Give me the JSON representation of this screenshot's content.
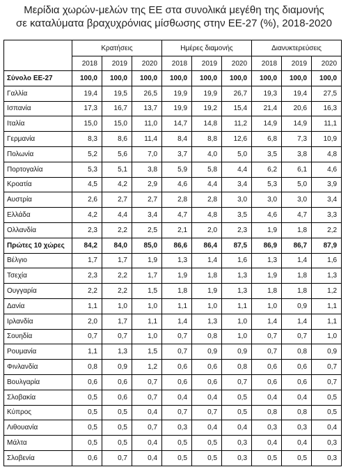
{
  "header": {
    "title_lines": [
      "Μερίδια χωρών-μελών της ΕΕ στα συνολικά μεγέθη της διαμονής",
      "σε καταλύματα βραχυχρόνιας μίσθωσης στην ΕΕ-27 (%), 2018-2020"
    ]
  },
  "table": {
    "groups": [
      {
        "label": "Κρατήσεις",
        "years": [
          "2018",
          "2019",
          "2020"
        ]
      },
      {
        "label": "Ημέρες διαμονής",
        "years": [
          "2018",
          "2019",
          "2020"
        ]
      },
      {
        "label": "Διανυκτερεύσεις",
        "years": [
          "2018",
          "2019",
          "2020"
        ]
      }
    ],
    "rows": [
      {
        "label": "Σύνολο ΕΕ-27",
        "bold": true,
        "values": [
          "100,0",
          "100,0",
          "100,0",
          "100,0",
          "100,0",
          "100,0",
          "100,0",
          "100,0",
          "100,0"
        ]
      },
      {
        "label": "Γαλλία",
        "bold": false,
        "values": [
          "19,4",
          "19,5",
          "26,5",
          "19,9",
          "19,9",
          "26,7",
          "19,3",
          "19,4",
          "27,5"
        ]
      },
      {
        "label": "Ισπανία",
        "bold": false,
        "values": [
          "17,3",
          "16,7",
          "13,7",
          "19,9",
          "19,2",
          "15,4",
          "21,4",
          "20,6",
          "16,3"
        ]
      },
      {
        "label": "Ιταλία",
        "bold": false,
        "values": [
          "15,0",
          "15,0",
          "11,0",
          "14,7",
          "14,8",
          "11,2",
          "14,9",
          "14,9",
          "11,1"
        ]
      },
      {
        "label": "Γερμανία",
        "bold": false,
        "values": [
          "8,3",
          "8,6",
          "11,4",
          "8,4",
          "8,8",
          "12,6",
          "6,8",
          "7,3",
          "10,9"
        ]
      },
      {
        "label": "Πολωνία",
        "bold": false,
        "values": [
          "5,2",
          "5,6",
          "7,0",
          "3,7",
          "4,0",
          "5,0",
          "3,5",
          "3,8",
          "4,8"
        ]
      },
      {
        "label": "Πορτογαλία",
        "bold": false,
        "values": [
          "5,3",
          "5,1",
          "3,8",
          "5,9",
          "5,8",
          "4,4",
          "6,2",
          "6,1",
          "4,6"
        ]
      },
      {
        "label": "Κροατία",
        "bold": false,
        "values": [
          "4,5",
          "4,2",
          "2,9",
          "4,6",
          "4,4",
          "3,4",
          "5,3",
          "5,0",
          "3,9"
        ]
      },
      {
        "label": "Αυστρία",
        "bold": false,
        "values": [
          "2,6",
          "2,7",
          "2,7",
          "2,8",
          "2,8",
          "3,0",
          "3,0",
          "3,0",
          "3,4"
        ]
      },
      {
        "label": "Ελλάδα",
        "bold": false,
        "values": [
          "4,2",
          "4,4",
          "3,4",
          "4,7",
          "4,8",
          "3,5",
          "4,6",
          "4,7",
          "3,3"
        ]
      },
      {
        "label": "Ολλανδία",
        "bold": false,
        "values": [
          "2,3",
          "2,2",
          "2,5",
          "2,1",
          "2,0",
          "2,3",
          "1,9",
          "1,8",
          "2,2"
        ]
      },
      {
        "label": "Πρώτες 10 χώρες",
        "bold": true,
        "values": [
          "84,2",
          "84,0",
          "85,0",
          "86,6",
          "86,4",
          "87,5",
          "86,9",
          "86,7",
          "87,9"
        ]
      },
      {
        "label": "Βέλγιο",
        "bold": false,
        "values": [
          "1,7",
          "1,7",
          "1,9",
          "1,3",
          "1,4",
          "1,6",
          "1,3",
          "1,4",
          "1,6"
        ]
      },
      {
        "label": "Τσεχία",
        "bold": false,
        "values": [
          "2,3",
          "2,2",
          "1,7",
          "1,9",
          "1,8",
          "1,3",
          "1,9",
          "1,8",
          "1,3"
        ]
      },
      {
        "label": "Ουγγαρία",
        "bold": false,
        "values": [
          "2,2",
          "2,2",
          "1,5",
          "1,8",
          "1,9",
          "1,3",
          "1,8",
          "1,8",
          "1,2"
        ]
      },
      {
        "label": "Δανία",
        "bold": false,
        "values": [
          "1,1",
          "1,0",
          "1,0",
          "1,1",
          "1,0",
          "1,1",
          "1,0",
          "0,9",
          "1,1"
        ]
      },
      {
        "label": "Ιρλανδία",
        "bold": false,
        "values": [
          "2,0",
          "1,7",
          "1,1",
          "1,4",
          "1,3",
          "1,0",
          "1,4",
          "1,4",
          "1,1"
        ]
      },
      {
        "label": "Σουηδία",
        "bold": false,
        "values": [
          "0,7",
          "0,7",
          "1,0",
          "0,7",
          "0,8",
          "1,0",
          "0,7",
          "0,7",
          "1,0"
        ]
      },
      {
        "label": "Ρουμανία",
        "bold": false,
        "values": [
          "1,1",
          "1,3",
          "1,5",
          "0,7",
          "0,9",
          "0,9",
          "0,7",
          "0,8",
          "0,9"
        ]
      },
      {
        "label": "Φινλανδία",
        "bold": false,
        "values": [
          "0,8",
          "0,9",
          "1,2",
          "0,6",
          "0,6",
          "0,8",
          "0,6",
          "0,6",
          "0,7"
        ]
      },
      {
        "label": "Βουλγαρία",
        "bold": false,
        "values": [
          "0,6",
          "0,6",
          "0,7",
          "0,6",
          "0,6",
          "0,7",
          "0,6",
          "0,6",
          "0,7"
        ]
      },
      {
        "label": "Σλοβακία",
        "bold": false,
        "values": [
          "0,5",
          "0,6",
          "0,7",
          "0,4",
          "0,4",
          "0,5",
          "0,4",
          "0,4",
          "0,5"
        ]
      },
      {
        "label": "Κύπρος",
        "bold": false,
        "values": [
          "0,5",
          "0,5",
          "0,4",
          "0,7",
          "0,7",
          "0,5",
          "0,8",
          "0,8",
          "0,5"
        ]
      },
      {
        "label": "Λιθουανία",
        "bold": false,
        "values": [
          "0,5",
          "0,5",
          "0,7",
          "0,3",
          "0,4",
          "0,4",
          "0,3",
          "0,3",
          "0,4"
        ]
      },
      {
        "label": "Μάλτα",
        "bold": false,
        "values": [
          "0,5",
          "0,5",
          "0,4",
          "0,5",
          "0,5",
          "0,3",
          "0,4",
          "0,4",
          "0,3"
        ]
      },
      {
        "label": "Σλοβενία",
        "bold": false,
        "values": [
          "0,6",
          "0,7",
          "0,4",
          "0,5",
          "0,5",
          "0,3",
          "0,5",
          "0,5",
          "0,3"
        ]
      }
    ]
  }
}
